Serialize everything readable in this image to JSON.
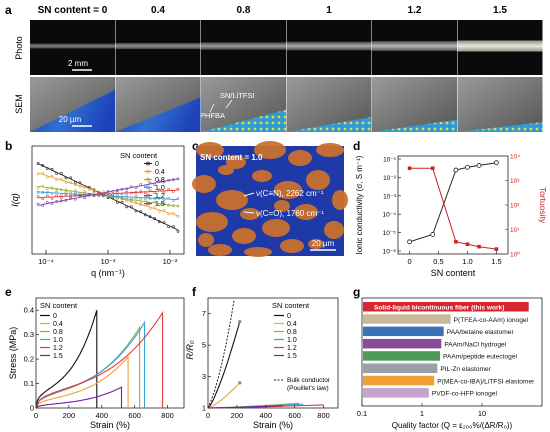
{
  "panel_letters": {
    "a": "a",
    "b": "b",
    "c": "c",
    "d": "d",
    "e": "e",
    "f": "f",
    "g": "g"
  },
  "panel_a": {
    "header_prefix": "SN content = ",
    "columns": [
      "0",
      "0.4",
      "0.8",
      "1",
      "1.2",
      "1.5"
    ],
    "row_labels": [
      "Photo",
      "SEM"
    ],
    "scale_photo": "2 mm",
    "scale_sem": "20 µm",
    "annot_sn": "SN/LiTFSI",
    "annot_phfba": "PHFBA"
  },
  "panel_c": {
    "title": "SN content = 1.0",
    "annot1": "ν(C≡N), 2262 cm⁻¹",
    "annot2": "ν(C=O), 1760 cm⁻¹",
    "scale": "20 µm"
  },
  "chart_b": {
    "type": "line",
    "ylabel": "I(q)",
    "xlabel": "q (nm⁻¹)",
    "x_log": true,
    "xlim": [
      0.0001,
      0.01
    ],
    "xticks": [
      "10⁻⁴",
      "10⁻³",
      "10⁻²"
    ],
    "legend_title": "SN content",
    "series": [
      {
        "name": "0",
        "color": "#222222",
        "y0": 0.9,
        "y1": 0.2
      },
      {
        "name": "0.4",
        "color": "#e8a33a",
        "y0": 0.8,
        "y1": 0.35
      },
      {
        "name": "0.8",
        "color": "#9bb03a",
        "y0": 0.66,
        "y1": 0.45
      },
      {
        "name": "1.0",
        "color": "#3aa0d8",
        "y0": 0.6,
        "y1": 0.52
      },
      {
        "name": "1.2",
        "color": "#e03a3a",
        "y0": 0.54,
        "y1": 0.62
      },
      {
        "name": "1.5",
        "color": "#7a4aa8",
        "y0": 0.46,
        "y1": 0.74
      }
    ]
  },
  "chart_d": {
    "type": "line",
    "ylabel_left": "Ionic conductivity (σ, S m⁻¹)",
    "ylabel_right": "Tortuosity",
    "xlabel": "SN content",
    "x": [
      0,
      0.4,
      0.8,
      1.0,
      1.2,
      1.5
    ],
    "xlim": [
      -0.2,
      1.7
    ],
    "xticks": [
      "0",
      "0.5",
      "1.0",
      "1.5"
    ],
    "xtick_values": [
      0,
      0.5,
      1.0,
      1.5
    ],
    "ylim_left_log": [
      -6,
      -1
    ],
    "yticks_left": [
      "10⁻⁶",
      "10⁻⁵",
      "10⁻⁴",
      "10⁻³",
      "10⁻²",
      "10⁻¹"
    ],
    "ylim_right_log": [
      0,
      4
    ],
    "yticks_right": [
      "10⁰",
      "10¹",
      "10²",
      "10³",
      "10⁴"
    ],
    "conductivity_log": [
      -5.5,
      -5.1,
      -1.6,
      -1.45,
      -1.35,
      -1.2
    ],
    "tortuosity_x": [
      0,
      0.4,
      0.8,
      1.0,
      1.2,
      1.5
    ],
    "tortuosity_log": [
      3.5,
      3.5,
      0.5,
      0.4,
      0.3,
      0.2
    ],
    "colors": {
      "conductivity": "#222222",
      "tortuosity": "#cc2222"
    }
  },
  "chart_e": {
    "type": "line",
    "ylabel": "Stress (MPa)",
    "xlabel": "Strain (%)",
    "xlim": [
      0,
      900
    ],
    "xticks": [
      "0",
      "200",
      "400",
      "600",
      "800"
    ],
    "xtick_values": [
      0,
      200,
      400,
      600,
      800
    ],
    "ylim": [
      0,
      0.45
    ],
    "yticks": [
      "0",
      "0.1",
      "0.2",
      "0.3",
      "0.4"
    ],
    "ytick_values": [
      0,
      0.1,
      0.2,
      0.3,
      0.4
    ],
    "legend_title": "SN content",
    "series": [
      {
        "name": "0",
        "color": "#111111",
        "break_strain": 370,
        "max_stress": 0.4
      },
      {
        "name": "0.4",
        "color": "#e8a33a",
        "break_strain": 560,
        "max_stress": 0.21
      },
      {
        "name": "0.8",
        "color": "#9bb03a",
        "break_strain": 630,
        "max_stress": 0.33
      },
      {
        "name": "1.0",
        "color": "#3aa0d8",
        "break_strain": 660,
        "max_stress": 0.35
      },
      {
        "name": "1.2",
        "color": "#e03a3a",
        "break_strain": 770,
        "max_stress": 0.39
      },
      {
        "name": "1.5",
        "color": "#7a1aa8",
        "break_strain": 520,
        "max_stress": 0.085
      }
    ]
  },
  "chart_f": {
    "type": "line",
    "ylabel": "R/R₀",
    "xlabel": "Strain (%)",
    "xlim": [
      0,
      900
    ],
    "xticks": [
      "0",
      "200",
      "400",
      "600",
      "800"
    ],
    "xtick_values": [
      0,
      200,
      400,
      600,
      800
    ],
    "ylim": [
      1,
      8
    ],
    "yticks": [
      "1",
      "3",
      "5",
      "7"
    ],
    "ytick_values": [
      1,
      3,
      5,
      7
    ],
    "legend_title": "SN content",
    "legend_bulk": "Bulk conductor",
    "legend_bulk2": "(Pouillet's law)",
    "series": [
      {
        "name": "0",
        "color": "#111111",
        "end_strain": 220,
        "end_r": 6.5
      },
      {
        "name": "0.4",
        "color": "#e8a33a",
        "end_strain": 220,
        "end_r": 2.6
      },
      {
        "name": "0.8",
        "color": "#9bb03a",
        "end_strain": 630,
        "end_r": 1.3
      },
      {
        "name": "1.0",
        "color": "#3aa0d8",
        "end_strain": 660,
        "end_r": 1.25
      },
      {
        "name": "1.2",
        "color": "#e03a3a",
        "end_strain": 800,
        "end_r": 1.2
      },
      {
        "name": "1.5",
        "color": "#7a1aa8",
        "end_strain": 520,
        "end_r": 1.15
      }
    ]
  },
  "chart_g": {
    "type": "bar",
    "xlabel": "Quality factor (Q = ε₂₀₀%/(ΔR/R₀))",
    "x_log": true,
    "xlim_log": [
      -1,
      2
    ],
    "xticks": [
      "0.1",
      "1",
      "10"
    ],
    "categories": [
      "Solid-liquid bicontinuous fiber (this work)",
      "P(TFEA-co-AAm) ionogel",
      "PAA/betaine elastomer",
      "PAAm/NaCl hydrogel",
      "PAAm/peptide eutectogel",
      "PIL-Zn elastomer",
      "P(MEA-co-IBA)/LiTFSI elastomer",
      "PVDF-co-HFP ionogel"
    ],
    "values": [
      60,
      3.0,
      2.3,
      2.1,
      2.0,
      1.8,
      1.6,
      1.3
    ],
    "colors": [
      "#d7262f",
      "#c9b99a",
      "#3a72b8",
      "#8a4a9a",
      "#4e9a5a",
      "#9aa0a8",
      "#f0a030",
      "#c6a2cc"
    ]
  }
}
